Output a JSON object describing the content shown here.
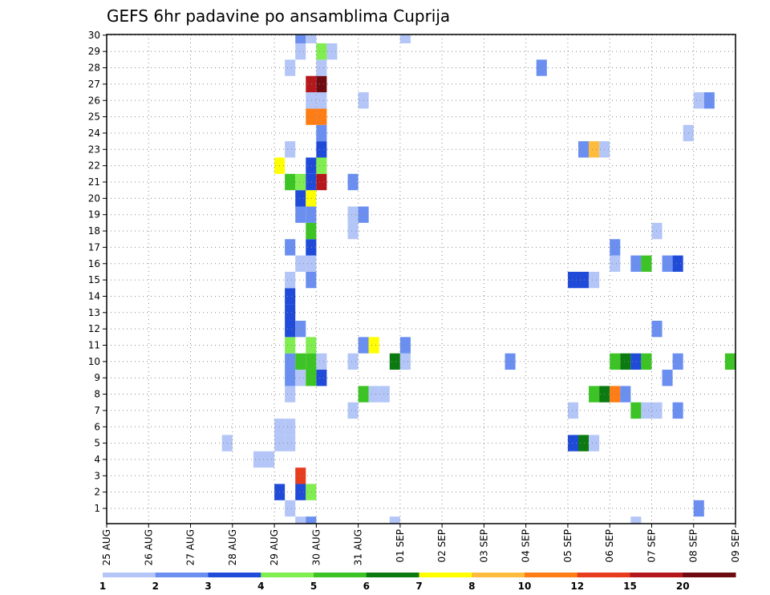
{
  "chart_data": {
    "type": "heatmap",
    "title": "GEFS 6hr padavine po ansamblima Cuprija",
    "xlabel": "",
    "ylabel": "",
    "x_ticks": [
      "25 AUG",
      "26 AUG",
      "27 AUG",
      "28 AUG",
      "29 AUG",
      "30 AUG",
      "31 AUG",
      "01 SEP",
      "02 SEP",
      "03 SEP",
      "04 SEP",
      "05 SEP",
      "06 SEP",
      "07 SEP",
      "08 SEP",
      "09 SEP"
    ],
    "y_ticks": [
      "1",
      "2",
      "3",
      "4",
      "5",
      "6",
      "7",
      "8",
      "9",
      "10",
      "11",
      "12",
      "13",
      "14",
      "15",
      "16",
      "17",
      "18",
      "19",
      "20",
      "21",
      "22",
      "23",
      "24",
      "25",
      "26",
      "27",
      "28",
      "29",
      "30"
    ],
    "xlim": [
      0,
      60
    ],
    "ylim": [
      0,
      30
    ],
    "grid": true,
    "legend": {
      "placement": "bottom",
      "thresholds": [
        "1",
        "2",
        "3",
        "4",
        "5",
        "6",
        "7",
        "8",
        "10",
        "12",
        "15",
        "20"
      ],
      "colors": [
        "#b4c6f7",
        "#6a8ff0",
        "#1f4bd8",
        "#80ed50",
        "#3cc424",
        "#0b7a10",
        "#ffff00",
        "#ffbb3c",
        "#ff7d14",
        "#e83c1e",
        "#b5181c",
        "#6e0a10"
      ]
    },
    "cells": [
      [
        18,
        0,
        1
      ],
      [
        19,
        0,
        2
      ],
      [
        27,
        0,
        1
      ],
      [
        50,
        0,
        1
      ],
      [
        17,
        1,
        1
      ],
      [
        56,
        1,
        2
      ],
      [
        16,
        2,
        3
      ],
      [
        18,
        2,
        3
      ],
      [
        19,
        2,
        4
      ],
      [
        18,
        3,
        10
      ],
      [
        14,
        4,
        1
      ],
      [
        15,
        4,
        1
      ],
      [
        11,
        5,
        1
      ],
      [
        16,
        5,
        1
      ],
      [
        17,
        5,
        1
      ],
      [
        44,
        5,
        3
      ],
      [
        45,
        5,
        6
      ],
      [
        46,
        5,
        1
      ],
      [
        16,
        6,
        1
      ],
      [
        17,
        6,
        1
      ],
      [
        23,
        7,
        1
      ],
      [
        44,
        7,
        1
      ],
      [
        50,
        7,
        5
      ],
      [
        51,
        7,
        1
      ],
      [
        52,
        7,
        1
      ],
      [
        54,
        7,
        2
      ],
      [
        17,
        8,
        1
      ],
      [
        24,
        8,
        5
      ],
      [
        25,
        8,
        1
      ],
      [
        26,
        8,
        1
      ],
      [
        46,
        8,
        5
      ],
      [
        47,
        8,
        6
      ],
      [
        48,
        8,
        9
      ],
      [
        49,
        8,
        2
      ],
      [
        17,
        9,
        2
      ],
      [
        18,
        9,
        1
      ],
      [
        19,
        9,
        5
      ],
      [
        20,
        9,
        3
      ],
      [
        53,
        9,
        2
      ],
      [
        17,
        10,
        2
      ],
      [
        18,
        10,
        5
      ],
      [
        19,
        10,
        5
      ],
      [
        20,
        10,
        1
      ],
      [
        23,
        10,
        1
      ],
      [
        27,
        10,
        6
      ],
      [
        28,
        10,
        1
      ],
      [
        38,
        10,
        2
      ],
      [
        48,
        10,
        5
      ],
      [
        49,
        10,
        6
      ],
      [
        50,
        10,
        3
      ],
      [
        51,
        10,
        5
      ],
      [
        54,
        10,
        2
      ],
      [
        59,
        10,
        5
      ],
      [
        60,
        10,
        3
      ],
      [
        17,
        11,
        4
      ],
      [
        19,
        11,
        4
      ],
      [
        24,
        11,
        2
      ],
      [
        25,
        11,
        7
      ],
      [
        28,
        11,
        2
      ],
      [
        17,
        12,
        3
      ],
      [
        18,
        12,
        2
      ],
      [
        52,
        12,
        2
      ],
      [
        17,
        13,
        3
      ],
      [
        17,
        14,
        3
      ],
      [
        17,
        15,
        1
      ],
      [
        19,
        15,
        2
      ],
      [
        44,
        15,
        3
      ],
      [
        45,
        15,
        3
      ],
      [
        46,
        15,
        1
      ],
      [
        18,
        16,
        1
      ],
      [
        19,
        16,
        1
      ],
      [
        48,
        16,
        1
      ],
      [
        50,
        16,
        2
      ],
      [
        51,
        16,
        5
      ],
      [
        53,
        16,
        2
      ],
      [
        54,
        16,
        3
      ],
      [
        60,
        16,
        1
      ],
      [
        17,
        17,
        2
      ],
      [
        19,
        17,
        3
      ],
      [
        48,
        17,
        2
      ],
      [
        19,
        18,
        5
      ],
      [
        23,
        18,
        1
      ],
      [
        52,
        18,
        1
      ],
      [
        18,
        19,
        2
      ],
      [
        19,
        19,
        2
      ],
      [
        23,
        19,
        1
      ],
      [
        24,
        19,
        2
      ],
      [
        18,
        20,
        3
      ],
      [
        19,
        20,
        7
      ],
      [
        17,
        21,
        5
      ],
      [
        18,
        21,
        4
      ],
      [
        19,
        21,
        3
      ],
      [
        20,
        21,
        11
      ],
      [
        23,
        21,
        2
      ],
      [
        16,
        22,
        7
      ],
      [
        19,
        22,
        3
      ],
      [
        20,
        22,
        4
      ],
      [
        17,
        23,
        1
      ],
      [
        20,
        23,
        3
      ],
      [
        45,
        23,
        2
      ],
      [
        46,
        23,
        8
      ],
      [
        47,
        23,
        1
      ],
      [
        20,
        24,
        2
      ],
      [
        55,
        24,
        1
      ],
      [
        19,
        25,
        9
      ],
      [
        20,
        25,
        9
      ],
      [
        19,
        26,
        1
      ],
      [
        20,
        26,
        1
      ],
      [
        24,
        26,
        1
      ],
      [
        56,
        26,
        1
      ],
      [
        57,
        26,
        2
      ],
      [
        19,
        27,
        11
      ],
      [
        20,
        27,
        12
      ],
      [
        17,
        28,
        1
      ],
      [
        20,
        28,
        1
      ],
      [
        41,
        28,
        2
      ],
      [
        18,
        29,
        1
      ],
      [
        20,
        29,
        4
      ],
      [
        21,
        29,
        1
      ],
      [
        18,
        30,
        2
      ],
      [
        19,
        30,
        1
      ],
      [
        28,
        30,
        1
      ]
    ]
  }
}
